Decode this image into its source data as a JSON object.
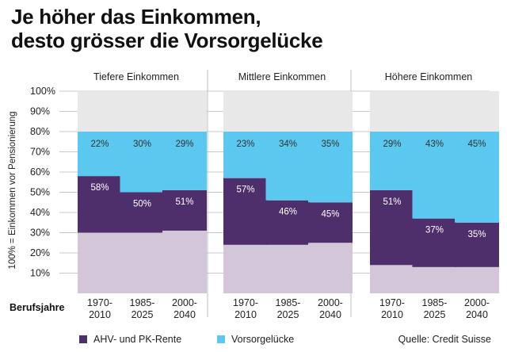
{
  "title_line1": "Je höher das Einkommen,",
  "title_line2": "desto grösser die Vorsorgelücke",
  "legend": {
    "pension_label": "AHV- und PK-Rente",
    "gap_label": "Vorsorgelücke"
  },
  "source": "Quelle: Credit Suisse",
  "colors": {
    "base": "#d3c6d9",
    "pension": "#4e2f6b",
    "gap": "#5bc8ef",
    "empty": "#e8e8e8",
    "grid": "#c8c8c8"
  },
  "chart_data": {
    "type": "bar",
    "stacked": true,
    "ylabel": "100% = Einkommen vor Pensionierung",
    "xlabel": "Berufsjahre",
    "ylim": [
      0,
      100
    ],
    "yticks": [
      "10%",
      "20%",
      "30%",
      "40%",
      "50%",
      "60%",
      "70%",
      "80%",
      "90%",
      "100%"
    ],
    "groups": [
      {
        "name": "Tiefere Einkommen",
        "periods": [
          {
            "line1": "1970-",
            "line2": "2010",
            "base": 30,
            "pension": 58,
            "gap": 22,
            "pension_label": "58%",
            "gap_label": "22%"
          },
          {
            "line1": "1985-",
            "line2": "2025",
            "base": 30,
            "pension": 50,
            "gap": 30,
            "pension_label": "50%",
            "gap_label": "30%"
          },
          {
            "line1": "2000-",
            "line2": "2040",
            "base": 31,
            "pension": 51,
            "gap": 29,
            "pension_label": "51%",
            "gap_label": "29%"
          }
        ]
      },
      {
        "name": "Mittlere Einkommen",
        "periods": [
          {
            "line1": "1970-",
            "line2": "2010",
            "base": 24,
            "pension": 57,
            "gap": 23,
            "pension_label": "57%",
            "gap_label": "23%"
          },
          {
            "line1": "1985-",
            "line2": "2025",
            "base": 24,
            "pension": 46,
            "gap": 34,
            "pension_label": "46%",
            "gap_label": "34%"
          },
          {
            "line1": "2000-",
            "line2": "2040",
            "base": 25,
            "pension": 45,
            "gap": 35,
            "pension_label": "45%",
            "gap_label": "35%"
          }
        ]
      },
      {
        "name": "Höhere Einkommen",
        "periods": [
          {
            "line1": "1970-",
            "line2": "2010",
            "base": 14,
            "pension": 51,
            "gap": 29,
            "pension_label": "51%",
            "gap_label": "29%"
          },
          {
            "line1": "1985-",
            "line2": "2025",
            "base": 13,
            "pension": 37,
            "gap": 43,
            "pension_label": "37%",
            "gap_label": "43%"
          },
          {
            "line1": "2000-",
            "line2": "2040",
            "base": 13,
            "pension": 35,
            "gap": 45,
            "pension_label": "35%",
            "gap_label": "45%"
          }
        ]
      }
    ]
  }
}
